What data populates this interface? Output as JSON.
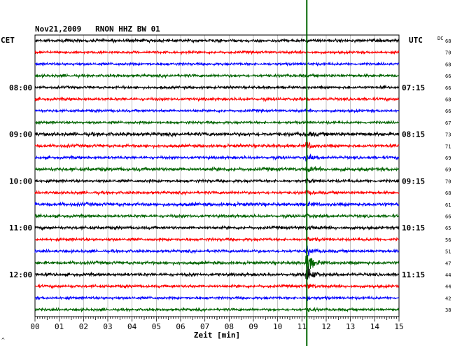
{
  "chart_data": {
    "type": "line",
    "title": "Nov21,2009   RNON HHZ BW 01",
    "left_timezone": "CET",
    "right_timezone": "UTC",
    "dc_header": "DC",
    "xlabel": "Zeit [min]",
    "xlim": [
      0,
      15
    ],
    "x_ticks": [
      "00",
      "01",
      "02",
      "03",
      "04",
      "05",
      "06",
      "07",
      "08",
      "09",
      "10",
      "11",
      "12",
      "13",
      "14",
      "15"
    ],
    "trace_count": 24,
    "trace_colors": [
      "#000000",
      "#ff0000",
      "#0000ff",
      "#006400"
    ],
    "left_hour_labels": [
      {
        "trace": 4,
        "label": "08:00"
      },
      {
        "trace": 8,
        "label": "09:00"
      },
      {
        "trace": 12,
        "label": "10:00"
      },
      {
        "trace": 16,
        "label": "11:00"
      },
      {
        "trace": 20,
        "label": "12:00"
      }
    ],
    "right_hour_labels": [
      {
        "trace": 4,
        "label": "07:15"
      },
      {
        "trace": 8,
        "label": "08:15"
      },
      {
        "trace": 12,
        "label": "09:15"
      },
      {
        "trace": 16,
        "label": "10:15"
      },
      {
        "trace": 20,
        "label": "11:15"
      }
    ],
    "dc_values": [
      "68",
      "70",
      "68",
      "66",
      "66",
      "68",
      "66",
      "67",
      "73",
      "71",
      "69",
      "69",
      "70",
      "68",
      "61",
      "66",
      "65",
      "56",
      "51",
      "47",
      "44",
      "44",
      "42",
      "38"
    ],
    "event_marker": {
      "minute": 11.2,
      "color": "#006400"
    },
    "event_amplitude": [
      0,
      0,
      0,
      0,
      0,
      0,
      0,
      0,
      0.4,
      0.9,
      0.7,
      0.5,
      0.4,
      0.4,
      0.3,
      0.3,
      0.5,
      0.5,
      1.2,
      2.8,
      2.4,
      0.7,
      0.5,
      0.4
    ],
    "noise_amplitude": [
      1.4,
      1.2,
      1.2,
      1.3,
      1.2,
      1.3,
      1.2,
      1.2,
      1.7,
      1.4,
      1.3,
      1.6,
      1.3,
      1.3,
      1.6,
      1.3,
      1.4,
      1.3,
      1.3,
      1.4,
      1.4,
      1.3,
      1.2,
      1.2
    ]
  },
  "footer_mark": "^"
}
